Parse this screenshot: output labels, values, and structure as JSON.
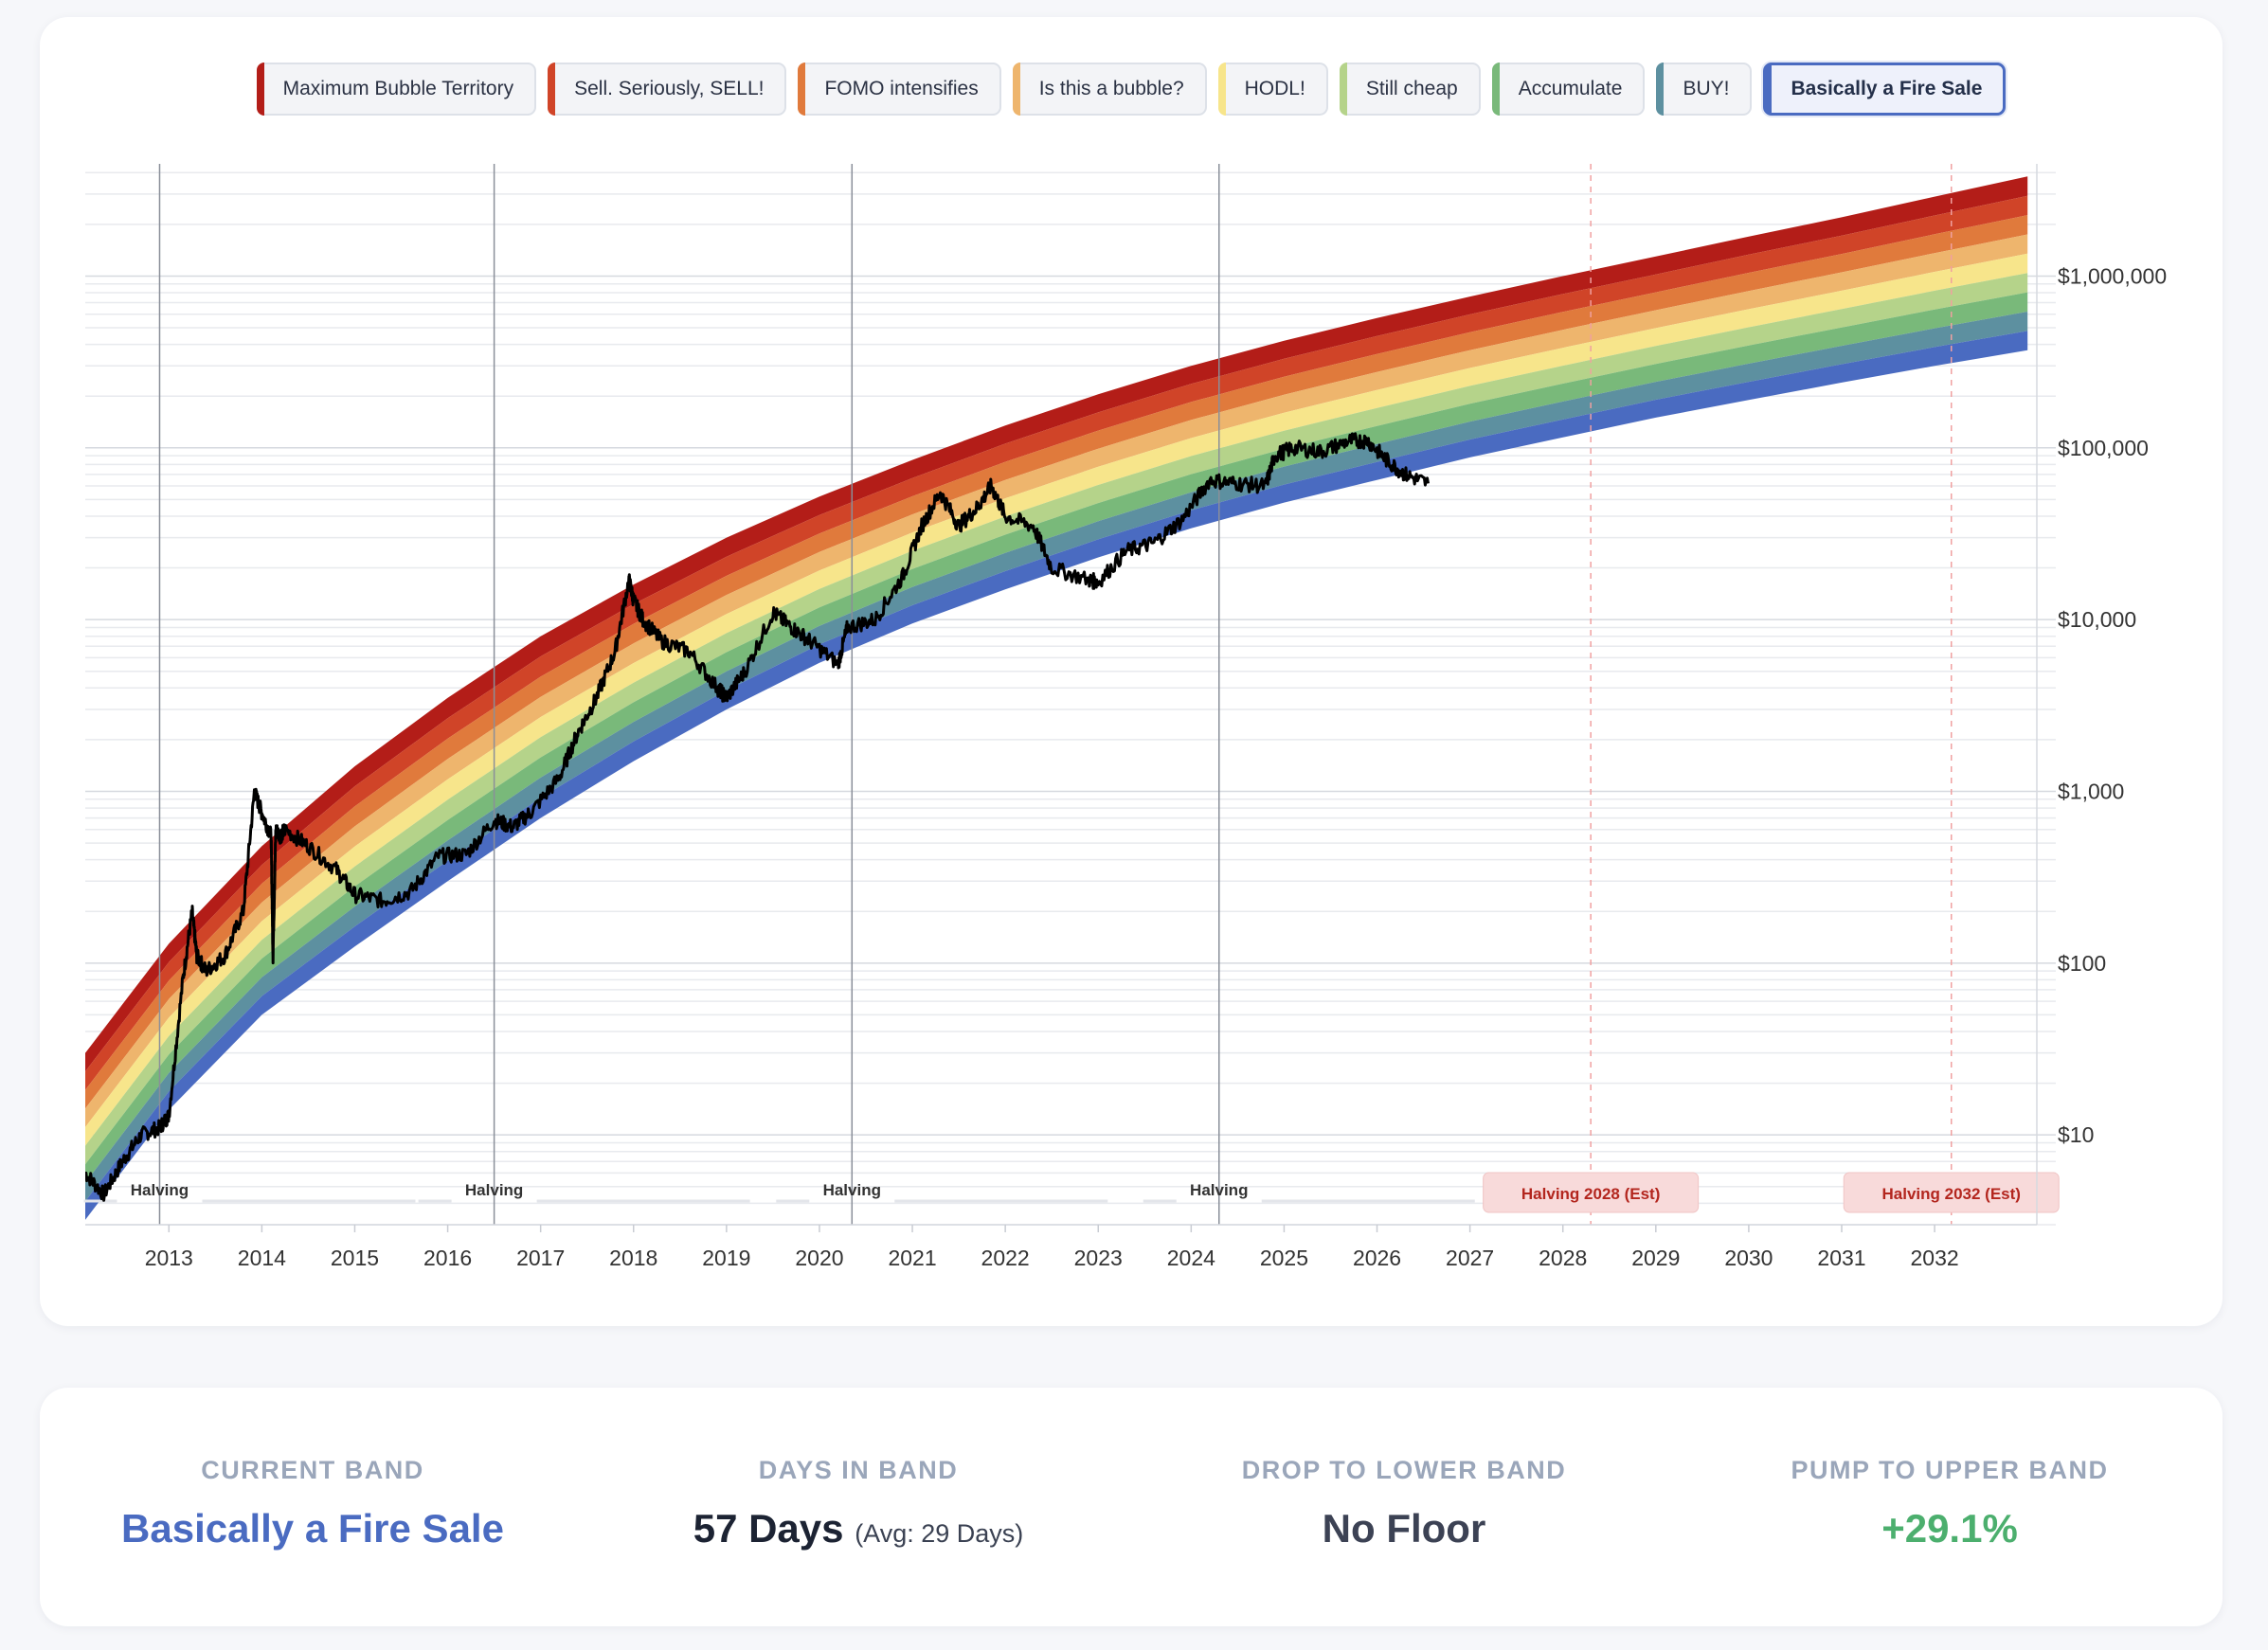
{
  "legend": {
    "items": [
      {
        "label": "Maximum Bubble Territory",
        "color": "#b31d18"
      },
      {
        "label": "Sell. Seriously, SELL!",
        "color": "#d04428"
      },
      {
        "label": "FOMO intensifies",
        "color": "#e07a3c"
      },
      {
        "label": "Is this a bubble?",
        "color": "#eeb56d"
      },
      {
        "label": "HODL!",
        "color": "#f7e58b"
      },
      {
        "label": "Still cheap",
        "color": "#b5d38a"
      },
      {
        "label": "Accumulate",
        "color": "#79b97a"
      },
      {
        "label": "BUY!",
        "color": "#5d90a0"
      },
      {
        "label": "Basically a Fire Sale",
        "color": "#4a6bc1"
      }
    ],
    "active_index": 8
  },
  "chart_data": {
    "type": "area",
    "y_scale": "log",
    "ylim": [
      3,
      4500000
    ],
    "xlim": [
      2012.1,
      2033.1
    ],
    "y_ticks": [
      {
        "value": 10,
        "label": "$10"
      },
      {
        "value": 100,
        "label": "$100"
      },
      {
        "value": 1000,
        "label": "$1,000"
      },
      {
        "value": 10000,
        "label": "$10,000"
      },
      {
        "value": 100000,
        "label": "$100,000"
      },
      {
        "value": 1000000,
        "label": "$1,000,000"
      }
    ],
    "x_ticks": [
      "2013",
      "2014",
      "2015",
      "2016",
      "2017",
      "2018",
      "2019",
      "2020",
      "2021",
      "2022",
      "2023",
      "2024",
      "2025",
      "2026",
      "2027",
      "2028",
      "2029",
      "2030",
      "2031",
      "2032"
    ],
    "band_edges": {
      "x": [
        2012.1,
        2013,
        2014,
        2015,
        2016,
        2017,
        2018,
        2019,
        2020,
        2021,
        2022,
        2023,
        2024,
        2025,
        2026,
        2027,
        2028,
        2029,
        2030,
        2031,
        2032,
        2033
      ],
      "bottom": [
        3.2,
        14,
        50,
        125,
        300,
        700,
        1500,
        3000,
        5600,
        9500,
        15000,
        23000,
        34000,
        48000,
        65000,
        88000,
        115000,
        150000,
        190000,
        240000,
        300000,
        370000
      ],
      "top": [
        30,
        130,
        480,
        1400,
        3500,
        8000,
        16000,
        30000,
        52000,
        85000,
        135000,
        205000,
        300000,
        420000,
        570000,
        760000,
        1000000,
        1300000,
        1700000,
        2200000,
        2900000,
        3800000
      ]
    },
    "series": [
      {
        "name": "",
        "color": "#000000",
        "x": [
          2012.1,
          2012.3,
          2012.5,
          2012.7,
          2012.9,
          2013.0,
          2013.15,
          2013.25,
          2013.3,
          2013.4,
          2013.6,
          2013.8,
          2013.92,
          2014.0,
          2014.1,
          2014.12,
          2014.15,
          2014.2,
          2014.25,
          2014.5,
          2014.8,
          2015.0,
          2015.3,
          2015.6,
          2015.9,
          2016.2,
          2016.5,
          2016.7,
          2016.9,
          2017.2,
          2017.4,
          2017.6,
          2017.8,
          2017.95,
          2018.0,
          2018.1,
          2018.3,
          2018.6,
          2018.9,
          2019.0,
          2019.2,
          2019.5,
          2019.7,
          2019.9,
          2020.2,
          2020.3,
          2020.6,
          2020.9,
          2021.1,
          2021.3,
          2021.5,
          2021.7,
          2021.85,
          2022.0,
          2022.3,
          2022.5,
          2022.9,
          2023.0,
          2023.3,
          2023.6,
          2023.9,
          2024.2,
          2024.5,
          2024.8,
          2024.9,
          2025.1,
          2025.4,
          2025.7,
          2025.9,
          2026.1,
          2026.3,
          2026.55
        ],
        "y": [
          6,
          4.5,
          7,
          10,
          11,
          13,
          80,
          200,
          110,
          90,
          110,
          200,
          1000,
          750,
          550,
          110,
          600,
          550,
          600,
          480,
          350,
          250,
          230,
          260,
          420,
          430,
          680,
          620,
          760,
          1200,
          2200,
          3500,
          6500,
          17000,
          13000,
          10000,
          7500,
          6500,
          4000,
          3500,
          5000,
          11000,
          9000,
          7500,
          5500,
          9000,
          10000,
          18000,
          35000,
          55000,
          35000,
          45000,
          60000,
          40000,
          35000,
          20000,
          17000,
          16500,
          25000,
          28000,
          38000,
          65000,
          62000,
          60000,
          90000,
          100000,
          95000,
          110000,
          110000,
          85000,
          70000,
          62000
        ]
      }
    ],
    "halvings": [
      {
        "x": 2012.9,
        "label": "Halving",
        "estimated": false
      },
      {
        "x": 2016.5,
        "label": "Halving",
        "estimated": false
      },
      {
        "x": 2020.35,
        "label": "Halving",
        "estimated": false
      },
      {
        "x": 2024.3,
        "label": "Halving",
        "estimated": false
      },
      {
        "x": 2028.3,
        "label": "Halving 2028 (Est)",
        "estimated": true
      },
      {
        "x": 2032.18,
        "label": "Halving 2032 (Est)",
        "estimated": true
      }
    ]
  },
  "stats": {
    "current_band": {
      "label": "CURRENT BAND",
      "value": "Basically a Fire Sale",
      "color": "#4a6bc1"
    },
    "days_in_band": {
      "label": "DAYS IN BAND",
      "value": "57 Days",
      "sub": "(Avg: 29 Days)",
      "color": "#1c2333"
    },
    "drop_to_lower": {
      "label": "DROP TO LOWER BAND",
      "value": "No Floor",
      "color": "#3c4254"
    },
    "pump_to_upper": {
      "label": "PUMP TO UPPER BAND",
      "value": "+29.1%",
      "color": "#4caf6e"
    }
  }
}
